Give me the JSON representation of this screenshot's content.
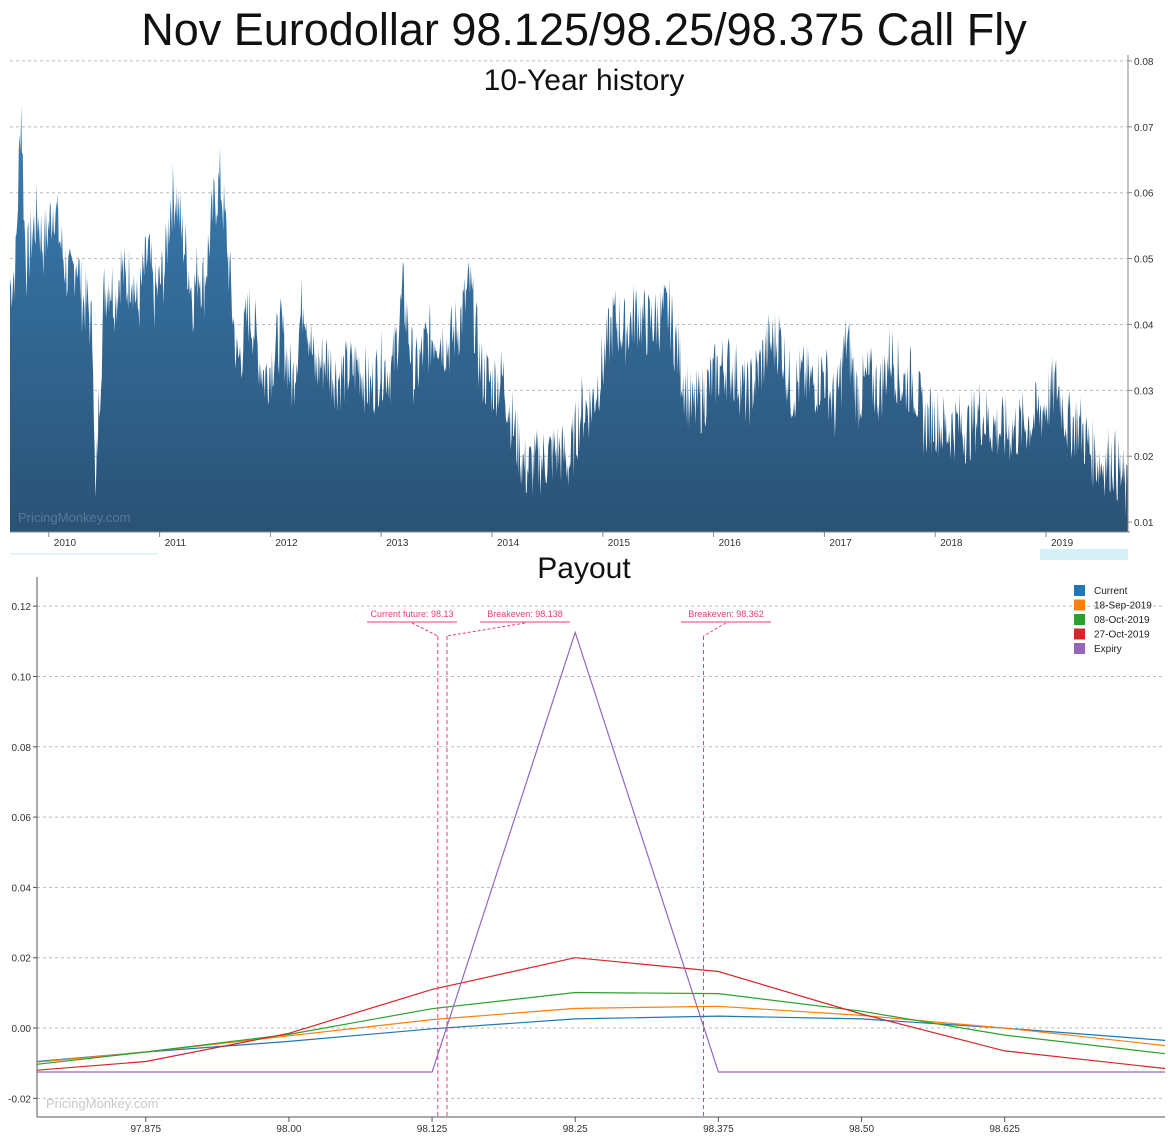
{
  "title": "Nov Eurodollar 98.125/98.25/98.375 Call Fly",
  "watermark": "PricingMonkey.com",
  "colors": {
    "history_fill_top": "#3a7fb5",
    "history_fill_bottom": "#2a5275",
    "annotation": "#e2417a",
    "grid": "#bbbbbb",
    "navigator": "#d6f0f8"
  },
  "chart_data": [
    {
      "type": "area",
      "title": "10-Year history",
      "y_ticks": [
        "0.01",
        "0.02",
        "0.03",
        "0.04",
        "0.05",
        "0.06",
        "0.07",
        "0.08"
      ],
      "x_ticks": [
        "2010",
        "2011",
        "2012",
        "2013",
        "2014",
        "2015",
        "2016",
        "2017",
        "2018",
        "2019"
      ],
      "ylim": [
        0.0085,
        0.0809
      ],
      "xlim": [
        2009.65,
        2019.74
      ],
      "grid": "horizontal dashed",
      "y_axis_side": "right",
      "series": [
        {
          "x": [
            2009.65,
            2009.7,
            2009.75,
            2009.78,
            2009.8,
            2009.85,
            2009.9,
            2009.95,
            2010.0,
            2010.05,
            2010.1,
            2010.15,
            2010.2,
            2010.25,
            2010.3,
            2010.35,
            2010.4,
            2010.42,
            2010.45,
            2010.5,
            2010.55,
            2010.6,
            2010.65,
            2010.7,
            2010.75,
            2010.8,
            2010.85,
            2010.9,
            2010.95,
            2011.0,
            2011.05,
            2011.1,
            2011.15,
            2011.2,
            2011.25,
            2011.3,
            2011.35,
            2011.4,
            2011.45,
            2011.5,
            2011.55,
            2011.6,
            2011.65,
            2011.7,
            2011.75,
            2011.8,
            2011.85,
            2011.9,
            2011.95,
            2012.0,
            2012.1,
            2012.2,
            2012.3,
            2012.4,
            2012.5,
            2012.6,
            2012.7,
            2012.8,
            2012.9,
            2013.0,
            2013.1,
            2013.2,
            2013.3,
            2013.4,
            2013.5,
            2013.6,
            2013.7,
            2013.8,
            2013.9,
            2014.0,
            2014.1,
            2014.2,
            2014.3,
            2014.4,
            2014.5,
            2014.6,
            2014.7,
            2014.8,
            2014.9,
            2015.0,
            2015.1,
            2015.2,
            2015.3,
            2015.4,
            2015.5,
            2015.6,
            2015.7,
            2015.8,
            2015.9,
            2016.0,
            2016.1,
            2016.2,
            2016.3,
            2016.4,
            2016.5,
            2016.6,
            2016.7,
            2016.8,
            2016.9,
            2017.0,
            2017.1,
            2017.2,
            2017.3,
            2017.4,
            2017.5,
            2017.6,
            2017.7,
            2017.8,
            2017.9,
            2018.0,
            2018.1,
            2018.2,
            2018.3,
            2018.4,
            2018.5,
            2018.6,
            2018.7,
            2018.8,
            2018.9,
            2019.0,
            2019.1,
            2019.2,
            2019.3,
            2019.4,
            2019.5,
            2019.6,
            2019.7,
            2019.74
          ],
          "values": [
            0.047,
            0.05,
            0.075,
            0.056,
            0.05,
            0.055,
            0.058,
            0.053,
            0.056,
            0.06,
            0.054,
            0.05,
            0.047,
            0.052,
            0.045,
            0.044,
            0.039,
            0.012,
            0.028,
            0.046,
            0.048,
            0.045,
            0.05,
            0.047,
            0.05,
            0.043,
            0.048,
            0.052,
            0.045,
            0.047,
            0.05,
            0.06,
            0.061,
            0.055,
            0.051,
            0.045,
            0.05,
            0.047,
            0.054,
            0.06,
            0.063,
            0.055,
            0.045,
            0.035,
            0.038,
            0.043,
            0.041,
            0.036,
            0.033,
            0.035,
            0.04,
            0.032,
            0.046,
            0.034,
            0.036,
            0.033,
            0.034,
            0.035,
            0.031,
            0.035,
            0.034,
            0.046,
            0.033,
            0.038,
            0.04,
            0.038,
            0.041,
            0.047,
            0.034,
            0.032,
            0.033,
            0.025,
            0.019,
            0.02,
            0.021,
            0.022,
            0.02,
            0.028,
            0.029,
            0.035,
            0.042,
            0.04,
            0.043,
            0.041,
            0.042,
            0.043,
            0.035,
            0.028,
            0.03,
            0.033,
            0.035,
            0.034,
            0.03,
            0.034,
            0.038,
            0.039,
            0.031,
            0.033,
            0.032,
            0.034,
            0.028,
            0.039,
            0.03,
            0.033,
            0.031,
            0.037,
            0.032,
            0.033,
            0.026,
            0.027,
            0.025,
            0.026,
            0.025,
            0.028,
            0.026,
            0.025,
            0.025,
            0.026,
            0.027,
            0.029,
            0.032,
            0.026,
            0.026,
            0.022,
            0.02,
            0.021,
            0.017,
            0.014
          ]
        }
      ]
    },
    {
      "type": "line",
      "title": "Payout",
      "categories": [
        "97.875",
        "98.00",
        "98.125",
        "98.25",
        "98.375",
        "98.50",
        "98.625"
      ],
      "y_ticks": [
        "-0.02",
        "0.00",
        "0.02",
        "0.04",
        "0.06",
        "0.08",
        "0.10",
        "0.12"
      ],
      "xlim": [
        97.78,
        98.765
      ],
      "ylim": [
        -0.0253,
        0.1283
      ],
      "grid": "horizontal dashed",
      "legend_position": "top-right",
      "series": [
        {
          "name": "Current",
          "color": "#1f77b4",
          "x": [
            97.78,
            97.875,
            98.0,
            98.125,
            98.25,
            98.375,
            98.5,
            98.625,
            98.765
          ],
          "values": [
            -0.0095,
            -0.0068,
            -0.0038,
            -0.0002,
            0.0026,
            0.0034,
            0.0026,
            0.0,
            -0.0035
          ]
        },
        {
          "name": "18-Sep-2019",
          "color": "#ff7f0e",
          "x": [
            97.78,
            97.875,
            98.0,
            98.125,
            98.25,
            98.375,
            98.5,
            98.625,
            98.765
          ],
          "values": [
            -0.0097,
            -0.0068,
            -0.0022,
            0.0024,
            0.0056,
            0.0062,
            0.0036,
            0.0,
            -0.005
          ]
        },
        {
          "name": "08-Oct-2019",
          "color": "#2ca02c",
          "x": [
            97.78,
            97.875,
            98.0,
            98.125,
            98.25,
            98.375,
            98.5,
            98.625,
            98.765
          ],
          "values": [
            -0.0103,
            -0.0068,
            -0.0018,
            0.0055,
            0.0101,
            0.0098,
            0.0048,
            -0.002,
            -0.0073
          ]
        },
        {
          "name": "27-Oct-2019",
          "color": "#d62728",
          "x": [
            97.78,
            97.875,
            98.0,
            98.125,
            98.25,
            98.375,
            98.5,
            98.625,
            98.765
          ],
          "values": [
            -0.012,
            -0.0095,
            -0.0015,
            0.011,
            0.02,
            0.0161,
            0.004,
            -0.0065,
            -0.0115
          ]
        },
        {
          "name": "Expiry",
          "color": "#9467bd",
          "x": [
            97.78,
            98.125,
            98.25,
            98.375,
            98.765
          ],
          "values": [
            -0.0125,
            -0.0125,
            0.1125,
            -0.0125,
            -0.0125
          ]
        }
      ],
      "annotations": [
        {
          "text": "Current future: 98.13",
          "x": 98.13
        },
        {
          "text": "Breakeven: 98.138",
          "x": 98.138
        },
        {
          "text": "Breakeven: 98.362",
          "x": 98.362
        }
      ]
    }
  ]
}
